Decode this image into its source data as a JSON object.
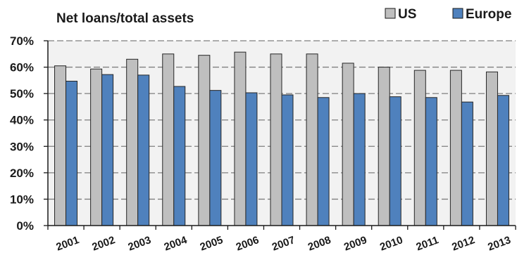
{
  "chart_data": {
    "type": "bar",
    "title": "Net loans/total assets",
    "categories": [
      "2001",
      "2002",
      "2003",
      "2004",
      "2005",
      "2006",
      "2007",
      "2008",
      "2009",
      "2010",
      "2011",
      "2012",
      "2013"
    ],
    "series": [
      {
        "name": "US",
        "color": "#bfbfbf",
        "values": [
          60.5,
          59.3,
          63.0,
          65.0,
          64.5,
          65.7,
          65.0,
          65.0,
          61.5,
          60.0,
          58.8,
          58.8,
          58.2
        ]
      },
      {
        "name": "Europe",
        "color": "#4f81bd",
        "values": [
          54.7,
          57.2,
          57.0,
          52.7,
          51.2,
          50.3,
          49.5,
          48.5,
          50.0,
          48.8,
          48.5,
          46.8,
          49.3
        ]
      }
    ],
    "ylim": [
      0,
      70
    ],
    "yticks": [
      "0%",
      "10%",
      "20%",
      "30%",
      "40%",
      "50%",
      "60%",
      "70%"
    ],
    "grid": true,
    "legend": "top-right"
  }
}
